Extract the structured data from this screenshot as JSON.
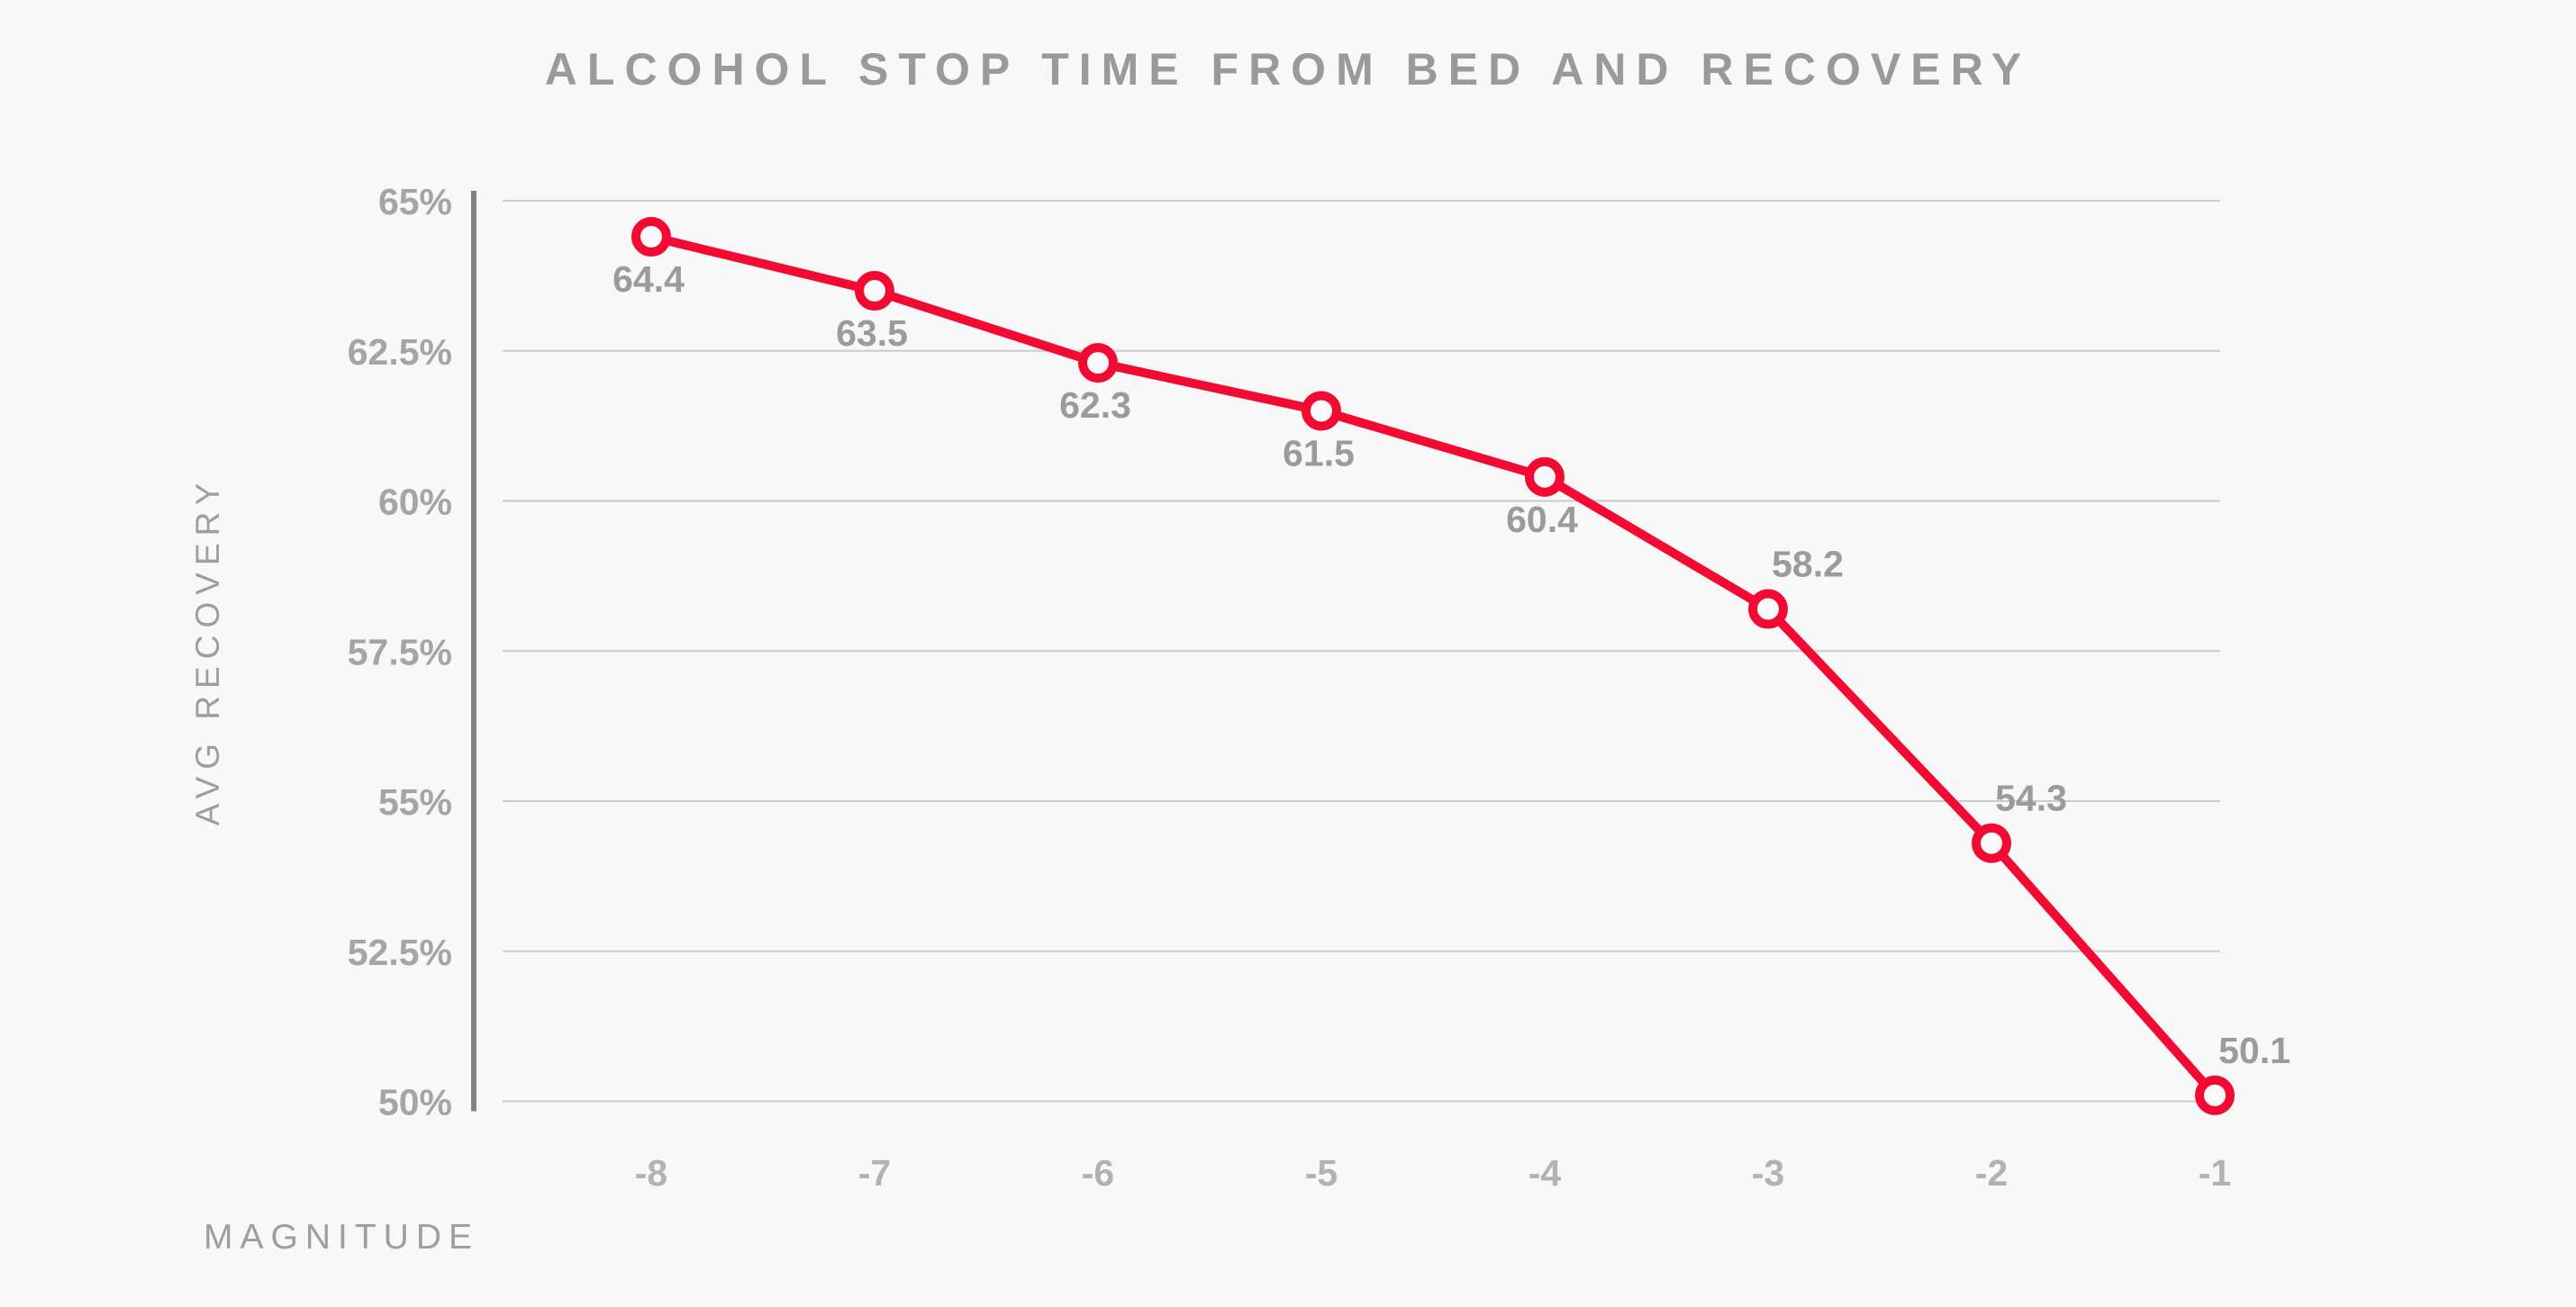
{
  "page": {
    "background": "#f8f8f8"
  },
  "chart_data": {
    "type": "line",
    "title": "ALCOHOL STOP TIME FROM BED AND RECOVERY",
    "xlabel": "MAGNITUDE",
    "ylabel": "AVG RECOVERY",
    "categories": [
      -8,
      -7,
      -6,
      -5,
      -4,
      -3,
      -2,
      -1
    ],
    "x_tick_labels": [
      "-8",
      "-7",
      "-6",
      "-5",
      "-4",
      "-3",
      "-2",
      "-1"
    ],
    "series": [
      {
        "name": "avg-recovery",
        "values": [
          64.4,
          63.5,
          62.3,
          61.5,
          60.4,
          58.2,
          54.3,
          50.1
        ],
        "point_labels": [
          "64.4",
          "63.5",
          "62.3",
          "61.5",
          "60.4",
          "58.2",
          "54.3",
          "50.1"
        ],
        "label_placement": [
          "below",
          "below",
          "below",
          "below",
          "below",
          "above",
          "above",
          "above"
        ]
      }
    ],
    "y_ticks": [
      65,
      62.5,
      60,
      57.5,
      55,
      52.5,
      50
    ],
    "y_tick_labels": [
      "65%",
      "62.5%",
      "60%",
      "57.5%",
      "55%",
      "52.5%",
      "50%"
    ],
    "ylim": [
      50,
      65
    ],
    "grid": "horizontal",
    "legend": "none",
    "colors": {
      "line": "#f20a33",
      "point_fill": "#fafafa",
      "grid": "#cccccc",
      "axis_line": "#828282",
      "title": "#9a9a9a",
      "y_tick_text": "#a5a5a5",
      "x_tick_text": "#b2b2b5",
      "data_label": "#9b9b9b",
      "axis_title": "#9e9e9e"
    }
  }
}
